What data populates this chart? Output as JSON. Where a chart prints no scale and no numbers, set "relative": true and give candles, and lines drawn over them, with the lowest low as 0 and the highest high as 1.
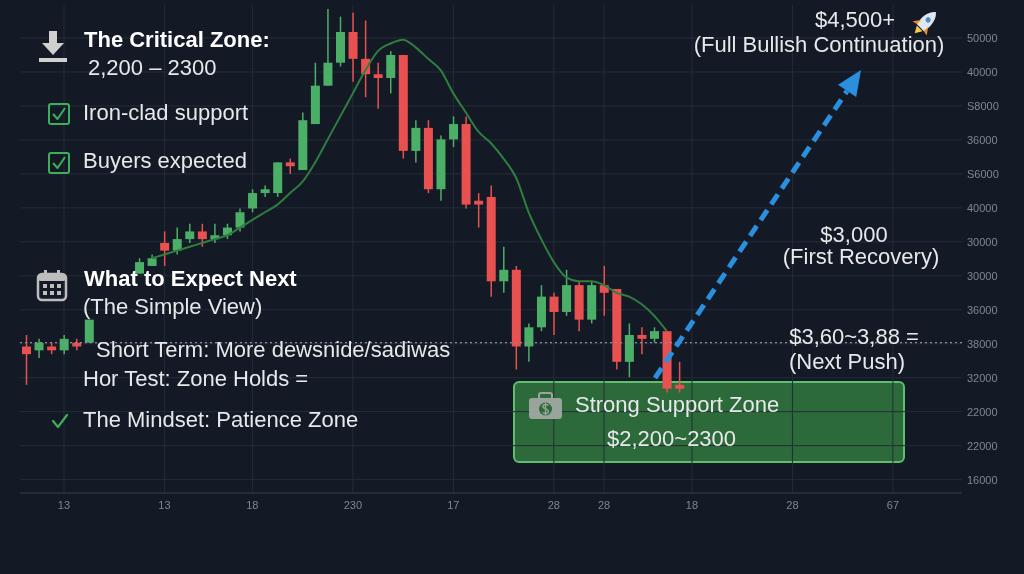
{
  "chart_data": {
    "type": "candlestick",
    "relative": true,
    "categories": [
      null,
      null,
      null,
      "13",
      null,
      null,
      null,
      null,
      null,
      null,
      null,
      "13",
      null,
      null,
      null,
      null,
      null,
      null,
      "18",
      null,
      null,
      null,
      null,
      null,
      null,
      null,
      "230",
      null,
      null,
      null,
      null,
      null,
      null,
      null,
      "17",
      null,
      null,
      null,
      null,
      null,
      null,
      null,
      "28",
      null,
      null,
      null,
      "28",
      null,
      null,
      null,
      null,
      null,
      null,
      "18",
      null,
      null,
      null,
      null,
      null,
      null,
      null,
      "28",
      null,
      null,
      null,
      null,
      null,
      null,
      null,
      "67",
      null,
      null,
      null,
      null,
      null
    ],
    "ohlc": [
      [
        0.12,
        0.15,
        0.02,
        0.1
      ],
      [
        0.11,
        0.14,
        0.09,
        0.13
      ],
      [
        0.12,
        0.13,
        0.1,
        0.11
      ],
      [
        0.11,
        0.15,
        0.1,
        0.14
      ],
      [
        0.13,
        0.14,
        0.11,
        0.12
      ],
      [
        0.13,
        0.19,
        0.13,
        0.19
      ],
      null,
      null,
      null,
      [
        0.31,
        0.35,
        0.31,
        0.34
      ],
      [
        0.33,
        0.36,
        0.33,
        0.35
      ],
      [
        0.39,
        0.42,
        0.33,
        0.37
      ],
      [
        0.37,
        0.43,
        0.36,
        0.4
      ],
      [
        0.4,
        0.44,
        0.39,
        0.42
      ],
      [
        0.42,
        0.44,
        0.38,
        0.4
      ],
      [
        0.4,
        0.44,
        0.39,
        0.41
      ],
      [
        0.41,
        0.44,
        0.4,
        0.43
      ],
      [
        0.43,
        0.48,
        0.42,
        0.47
      ],
      [
        0.48,
        0.53,
        0.47,
        0.52
      ],
      [
        0.52,
        0.54,
        0.51,
        0.53
      ],
      [
        0.52,
        0.6,
        0.51,
        0.6
      ],
      [
        0.6,
        0.61,
        0.57,
        0.59
      ],
      [
        0.58,
        0.73,
        0.58,
        0.71
      ],
      [
        0.7,
        0.86,
        0.7,
        0.8
      ],
      [
        0.8,
        1.0,
        0.8,
        0.86
      ],
      [
        0.86,
        0.98,
        0.85,
        0.94
      ],
      [
        0.94,
        0.99,
        0.81,
        0.87
      ],
      [
        0.87,
        0.97,
        0.77,
        0.83
      ],
      [
        0.83,
        0.86,
        0.74,
        0.82
      ],
      [
        0.82,
        0.89,
        0.78,
        0.88
      ],
      [
        0.88,
        0.88,
        0.61,
        0.63
      ],
      [
        0.63,
        0.71,
        0.6,
        0.69
      ],
      [
        0.69,
        0.71,
        0.52,
        0.53
      ],
      [
        0.53,
        0.67,
        0.5,
        0.66
      ],
      [
        0.66,
        0.72,
        0.64,
        0.7
      ],
      [
        0.7,
        0.72,
        0.48,
        0.49
      ],
      [
        0.5,
        0.52,
        0.43,
        0.49
      ],
      [
        0.51,
        0.54,
        0.25,
        0.29
      ],
      [
        0.29,
        0.38,
        0.26,
        0.32
      ],
      [
        0.32,
        0.33,
        0.06,
        0.12
      ],
      [
        0.12,
        0.18,
        0.08,
        0.17
      ],
      [
        0.17,
        0.28,
        0.16,
        0.25
      ],
      [
        0.25,
        0.26,
        0.15,
        0.21
      ],
      [
        0.21,
        0.32,
        0.2,
        0.28
      ],
      [
        0.28,
        0.29,
        0.16,
        0.19
      ],
      [
        0.19,
        0.29,
        0.18,
        0.28
      ],
      [
        0.28,
        0.33,
        0.2,
        0.26
      ],
      [
        0.27,
        0.27,
        0.06,
        0.08
      ],
      [
        0.08,
        0.18,
        0.04,
        0.15
      ],
      [
        0.15,
        0.17,
        0.1,
        0.14
      ],
      [
        0.14,
        0.17,
        0.13,
        0.16
      ],
      [
        0.16,
        0.16,
        0.0,
        0.01
      ],
      [
        0.02,
        0.08,
        0.0,
        0.01
      ],
      null,
      null,
      null,
      null,
      null,
      null,
      null,
      null,
      null,
      null,
      null,
      null,
      null,
      null,
      null,
      null,
      null,
      null,
      null,
      null,
      null,
      null
    ],
    "colors": [
      "#e8514f",
      "#4caf68",
      "#e8514f",
      "#4caf68",
      "#e8514f",
      "#4caf68",
      null,
      null,
      null,
      "#4caf68",
      "#4caf68",
      "#e8514f",
      "#4caf68",
      "#4caf68",
      "#e8514f",
      "#4caf68",
      "#4caf68",
      "#4caf68",
      "#4caf68",
      "#4caf68",
      "#4caf68",
      "#e8514f",
      "#4caf68",
      "#4caf68",
      "#4caf68",
      "#4caf68",
      "#e8514f",
      "#e8514f",
      "#e8514f",
      "#4caf68",
      "#e8514f",
      "#4caf68",
      "#e8514f",
      "#4caf68",
      "#4caf68",
      "#e8514f",
      "#e8514f",
      "#e8514f",
      "#4caf68",
      "#e8514f",
      "#4caf68",
      "#4caf68",
      "#e8514f",
      "#4caf68",
      "#e8514f",
      "#4caf68",
      "#e8514f",
      "#e8514f",
      "#4caf68",
      "#e8514f",
      "#4caf68",
      "#e8514f",
      "#e8514f",
      null,
      null,
      null,
      null,
      null,
      null,
      null,
      null,
      null,
      null,
      null,
      null,
      null,
      null,
      null,
      null,
      null,
      null,
      null,
      null,
      null,
      null
    ],
    "series": [
      {
        "type": "line",
        "color": "#2f7d3f",
        "values": [
          null,
          null,
          null,
          null,
          null,
          null,
          null,
          null,
          null,
          null,
          0.35,
          0.36,
          0.37,
          0.38,
          0.39,
          0.4,
          0.41,
          0.43,
          0.45,
          0.47,
          0.49,
          0.52,
          0.55,
          0.6,
          0.66,
          0.72,
          0.78,
          0.84,
          0.89,
          0.91,
          0.92,
          0.9,
          0.87,
          0.84,
          0.78,
          0.73,
          0.68,
          0.65,
          0.61,
          0.56,
          0.47,
          0.4,
          0.34,
          0.3,
          0.29,
          0.29,
          0.28,
          0.26,
          0.25,
          0.23,
          0.2,
          0.16,
          null,
          null,
          null,
          null,
          null,
          null,
          null,
          null,
          null,
          null,
          null,
          null,
          null,
          null,
          null,
          null,
          null,
          null,
          null,
          null,
          null,
          null,
          null
        ]
      }
    ],
    "grid": true,
    "ref_lines": [
      {
        "axis": "y",
        "value": 0.13,
        "color": "#8a8f99",
        "line_style": "dotted"
      }
    ],
    "annotations": [
      "The Critical Zone:",
      "2,200 – 2300",
      "Iron-clad support",
      "Buyers expected",
      "What to Expect Next",
      "(The Simple View)",
      "Short Term: More dewsnide/sadiwas",
      "Hor Test: Zone Holds =",
      "The Mindset: Patience Zone",
      "$4,500+",
      "(Full Bullish Continuation)",
      "$3,000",
      "(First Recovery)",
      "$3,60~3,88 =",
      "(Next Push)",
      "Strong Support Zone",
      "$2,200~2300",
      "50000",
      "40000",
      "S8000",
      "36000",
      "S6000",
      "40000",
      "30000",
      "30000",
      "36000",
      "38000",
      "32000",
      "22000",
      "22000",
      "16000"
    ]
  }
}
